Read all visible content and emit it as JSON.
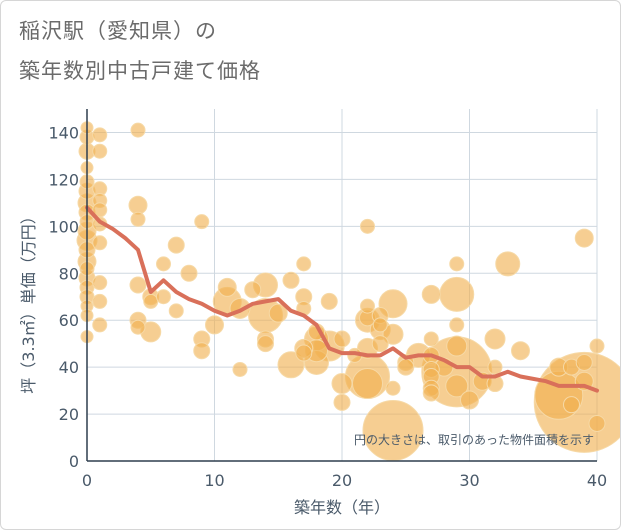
{
  "header": {
    "title_line_1": "稲沢駅（愛知県）の",
    "title_line_2": "築年数別中古戸建て価格"
  },
  "chart_data": {
    "type": "scatter",
    "title": "稲沢駅（愛知県）の築年数別中古戸建て価格",
    "xlabel": "築年数（年）",
    "ylabel": "坪（3.3㎡）単価（万円）",
    "xlim": [
      0,
      40
    ],
    "ylim": [
      0,
      150
    ],
    "xticks": [
      0,
      10,
      20,
      30,
      40
    ],
    "yticks": [
      0,
      20,
      40,
      60,
      80,
      100,
      120,
      140
    ],
    "grid": true,
    "note": "円の大きさは、取引のあった物件面積を示す",
    "colors": {
      "bubble": "#f0b04f",
      "bubble_stroke": "#f6d9a6",
      "line": "#d9705a",
      "axis_text": "#4a5a6a",
      "grid": "#cfd8e0"
    },
    "scatter_points": [
      {
        "x": 0,
        "y": 142,
        "s": 6
      },
      {
        "x": 0,
        "y": 138,
        "s": 7
      },
      {
        "x": 0,
        "y": 132,
        "s": 8
      },
      {
        "x": 0,
        "y": 125,
        "s": 6
      },
      {
        "x": 0,
        "y": 119,
        "s": 7
      },
      {
        "x": 0,
        "y": 115,
        "s": 8
      },
      {
        "x": 0,
        "y": 110,
        "s": 9
      },
      {
        "x": 0,
        "y": 106,
        "s": 8
      },
      {
        "x": 0,
        "y": 102,
        "s": 7
      },
      {
        "x": 0,
        "y": 98,
        "s": 9
      },
      {
        "x": 0,
        "y": 94,
        "s": 10
      },
      {
        "x": 0,
        "y": 90,
        "s": 8
      },
      {
        "x": 0,
        "y": 85,
        "s": 9
      },
      {
        "x": 0,
        "y": 82,
        "s": 7
      },
      {
        "x": 0,
        "y": 78,
        "s": 8
      },
      {
        "x": 0,
        "y": 74,
        "s": 7
      },
      {
        "x": 0,
        "y": 70,
        "s": 7
      },
      {
        "x": 0,
        "y": 66,
        "s": 6
      },
      {
        "x": 0,
        "y": 62,
        "s": 6
      },
      {
        "x": 0,
        "y": 53,
        "s": 6
      },
      {
        "x": 1,
        "y": 139,
        "s": 7
      },
      {
        "x": 1,
        "y": 132,
        "s": 7
      },
      {
        "x": 1,
        "y": 116,
        "s": 7
      },
      {
        "x": 1,
        "y": 111,
        "s": 7
      },
      {
        "x": 1,
        "y": 107,
        "s": 7
      },
      {
        "x": 1,
        "y": 101,
        "s": 7
      },
      {
        "x": 1,
        "y": 93,
        "s": 7
      },
      {
        "x": 1,
        "y": 76,
        "s": 7
      },
      {
        "x": 1,
        "y": 68,
        "s": 7
      },
      {
        "x": 1,
        "y": 58,
        "s": 7
      },
      {
        "x": 4,
        "y": 141,
        "s": 7
      },
      {
        "x": 4,
        "y": 109,
        "s": 9
      },
      {
        "x": 4,
        "y": 103,
        "s": 7
      },
      {
        "x": 4,
        "y": 75,
        "s": 8
      },
      {
        "x": 4,
        "y": 60,
        "s": 8
      },
      {
        "x": 4,
        "y": 57,
        "s": 7
      },
      {
        "x": 5,
        "y": 70,
        "s": 8
      },
      {
        "x": 5,
        "y": 68,
        "s": 7
      },
      {
        "x": 5,
        "y": 55,
        "s": 10
      },
      {
        "x": 6,
        "y": 84,
        "s": 7
      },
      {
        "x": 6,
        "y": 70,
        "s": 7
      },
      {
        "x": 7,
        "y": 92,
        "s": 8
      },
      {
        "x": 7,
        "y": 64,
        "s": 7
      },
      {
        "x": 8,
        "y": 80,
        "s": 8
      },
      {
        "x": 9,
        "y": 102,
        "s": 7
      },
      {
        "x": 9,
        "y": 52,
        "s": 8
      },
      {
        "x": 9,
        "y": 47,
        "s": 8
      },
      {
        "x": 10,
        "y": 58,
        "s": 9
      },
      {
        "x": 11,
        "y": 74,
        "s": 9
      },
      {
        "x": 11,
        "y": 68,
        "s": 14
      },
      {
        "x": 12,
        "y": 65,
        "s": 10
      },
      {
        "x": 12,
        "y": 39,
        "s": 7
      },
      {
        "x": 13,
        "y": 73,
        "s": 8
      },
      {
        "x": 14,
        "y": 75,
        "s": 12
      },
      {
        "x": 14,
        "y": 62,
        "s": 17
      },
      {
        "x": 14,
        "y": 52,
        "s": 8
      },
      {
        "x": 14,
        "y": 50,
        "s": 8
      },
      {
        "x": 15,
        "y": 63,
        "s": 9
      },
      {
        "x": 16,
        "y": 77,
        "s": 8
      },
      {
        "x": 16,
        "y": 41,
        "s": 13
      },
      {
        "x": 17,
        "y": 84,
        "s": 7
      },
      {
        "x": 17,
        "y": 70,
        "s": 8
      },
      {
        "x": 17,
        "y": 65,
        "s": 7
      },
      {
        "x": 17,
        "y": 48,
        "s": 9
      },
      {
        "x": 17,
        "y": 46,
        "s": 8
      },
      {
        "x": 18,
        "y": 55,
        "s": 8
      },
      {
        "x": 18,
        "y": 52,
        "s": 12
      },
      {
        "x": 18,
        "y": 47,
        "s": 11
      },
      {
        "x": 18,
        "y": 42,
        "s": 12
      },
      {
        "x": 19,
        "y": 68,
        "s": 8
      },
      {
        "x": 19,
        "y": 49,
        "s": 15
      },
      {
        "x": 20,
        "y": 52,
        "s": 8
      },
      {
        "x": 20,
        "y": 33,
        "s": 10
      },
      {
        "x": 20,
        "y": 25,
        "s": 8
      },
      {
        "x": 21,
        "y": 45,
        "s": 7
      },
      {
        "x": 22,
        "y": 100,
        "s": 7
      },
      {
        "x": 22,
        "y": 66,
        "s": 7
      },
      {
        "x": 22,
        "y": 61,
        "s": 8
      },
      {
        "x": 22,
        "y": 60,
        "s": 12
      },
      {
        "x": 22,
        "y": 48,
        "s": 10
      },
      {
        "x": 22,
        "y": 36,
        "s": 22
      },
      {
        "x": 22,
        "y": 33,
        "s": 15
      },
      {
        "x": 23,
        "y": 62,
        "s": 8
      },
      {
        "x": 23,
        "y": 58,
        "s": 7
      },
      {
        "x": 23,
        "y": 56,
        "s": 10
      },
      {
        "x": 23,
        "y": 50,
        "s": 8
      },
      {
        "x": 24,
        "y": 67,
        "s": 14
      },
      {
        "x": 24,
        "y": 54,
        "s": 10
      },
      {
        "x": 24,
        "y": 31,
        "s": 7
      },
      {
        "x": 24,
        "y": 13,
        "s": 30
      },
      {
        "x": 25,
        "y": 42,
        "s": 8
      },
      {
        "x": 25,
        "y": 40,
        "s": 8
      },
      {
        "x": 26,
        "y": 45,
        "s": 12
      },
      {
        "x": 27,
        "y": 71,
        "s": 9
      },
      {
        "x": 27,
        "y": 52,
        "s": 7
      },
      {
        "x": 27,
        "y": 45,
        "s": 8
      },
      {
        "x": 27,
        "y": 39,
        "s": 8
      },
      {
        "x": 27,
        "y": 36,
        "s": 8
      },
      {
        "x": 27,
        "y": 31,
        "s": 8
      },
      {
        "x": 27,
        "y": 29,
        "s": 8
      },
      {
        "x": 28,
        "y": 40,
        "s": 9
      },
      {
        "x": 29,
        "y": 84,
        "s": 7
      },
      {
        "x": 29,
        "y": 71,
        "s": 17
      },
      {
        "x": 29,
        "y": 58,
        "s": 7
      },
      {
        "x": 29,
        "y": 49,
        "s": 10
      },
      {
        "x": 29,
        "y": 38,
        "s": 35
      },
      {
        "x": 29,
        "y": 32,
        "s": 11
      },
      {
        "x": 30,
        "y": 26,
        "s": 9
      },
      {
        "x": 31,
        "y": 34,
        "s": 9
      },
      {
        "x": 32,
        "y": 52,
        "s": 10
      },
      {
        "x": 32,
        "y": 40,
        "s": 7
      },
      {
        "x": 32,
        "y": 33,
        "s": 8
      },
      {
        "x": 33,
        "y": 84,
        "s": 12
      },
      {
        "x": 34,
        "y": 47,
        "s": 9
      },
      {
        "x": 37,
        "y": 40,
        "s": 9
      },
      {
        "x": 37,
        "y": 28,
        "s": 24
      },
      {
        "x": 38,
        "y": 40,
        "s": 8
      },
      {
        "x": 38,
        "y": 24,
        "s": 8
      },
      {
        "x": 39,
        "y": 95,
        "s": 9
      },
      {
        "x": 39,
        "y": 42,
        "s": 8
      },
      {
        "x": 39,
        "y": 34,
        "s": 9
      },
      {
        "x": 39,
        "y": 25,
        "s": 50
      },
      {
        "x": 40,
        "y": 49,
        "s": 7
      },
      {
        "x": 40,
        "y": 16,
        "s": 8
      }
    ],
    "trend_line": {
      "x": [
        0,
        1,
        2,
        3,
        4,
        5,
        6,
        7,
        8,
        9,
        10,
        11,
        12,
        13,
        14,
        15,
        16,
        17,
        18,
        19,
        20,
        21,
        22,
        23,
        24,
        25,
        26,
        27,
        28,
        29,
        30,
        31,
        32,
        33,
        34,
        35,
        36,
        37,
        38,
        39,
        40
      ],
      "y": [
        108,
        102,
        99,
        95,
        90,
        72,
        77,
        72,
        69,
        67,
        64,
        62,
        64,
        67,
        68,
        69,
        64,
        62,
        58,
        48,
        46,
        46,
        45,
        45,
        48,
        44,
        45,
        45,
        43,
        40,
        40,
        36,
        36,
        38,
        36,
        35,
        34,
        32,
        32,
        32,
        30
      ]
    }
  }
}
